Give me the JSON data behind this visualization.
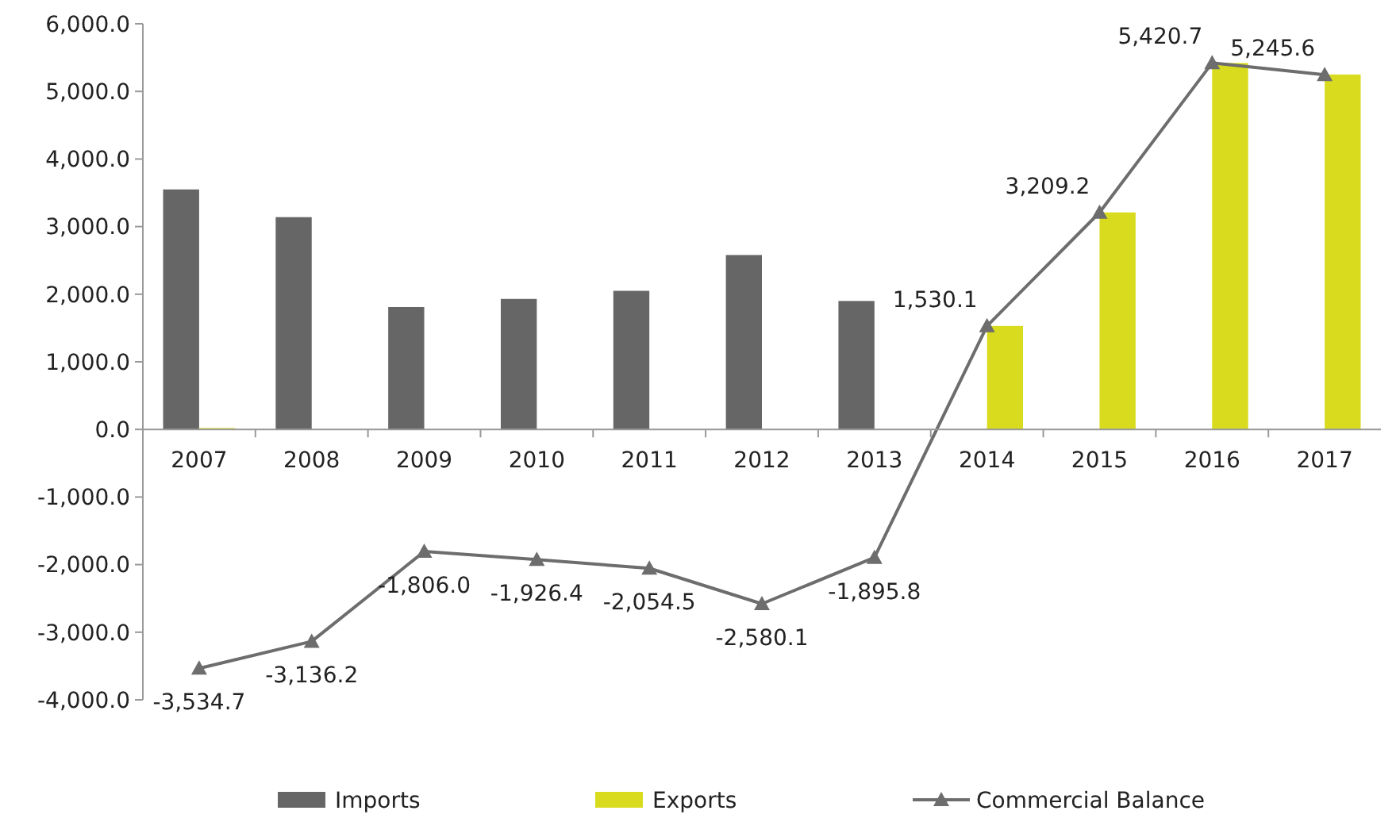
{
  "chart_data": {
    "type": "bar",
    "categories": [
      "2007",
      "2008",
      "2009",
      "2010",
      "2011",
      "2012",
      "2013",
      "2014",
      "2015",
      "2016",
      "2017"
    ],
    "series": [
      {
        "name": "Imports",
        "color": "#666666",
        "values": [
          3550,
          3140,
          1810,
          1930,
          2050,
          2580,
          1900,
          0,
          0,
          0,
          0
        ]
      },
      {
        "name": "Exports",
        "color": "#d9dc1e",
        "values": [
          20,
          0,
          0,
          0,
          0,
          0,
          0,
          1530,
          3210,
          5420,
          5250
        ]
      },
      {
        "name": "Commercial Balance",
        "type": "line",
        "color": "#6d6d6d",
        "marker": "triangle",
        "values": [
          -3534.7,
          -3136.2,
          -1806.0,
          -1926.4,
          -2054.5,
          -2580.1,
          -1895.8,
          1530.1,
          3209.2,
          5420.7,
          5245.6
        ],
        "value_labels": [
          "-3,534.7",
          "-3,136.2",
          "-1,806.0",
          "-1,926.4",
          "-2,054.5",
          "-2,580.1",
          "-1,895.8",
          "1,530.1",
          "3,209.2",
          "5,420.7",
          "5,245.6"
        ]
      }
    ],
    "ylim": [
      -4000,
      6000
    ],
    "yticks": [
      {
        "value": -4000,
        "label": "-4,000.0"
      },
      {
        "value": -3000,
        "label": "-3,000.0"
      },
      {
        "value": -2000,
        "label": "-2,000.0"
      },
      {
        "value": -1000,
        "label": "-1,000.0"
      },
      {
        "value": 0,
        "label": "0.0"
      },
      {
        "value": 1000,
        "label": "1,000.0"
      },
      {
        "value": 2000,
        "label": "2,000.0"
      },
      {
        "value": 3000,
        "label": "3,000.0"
      },
      {
        "value": 4000,
        "label": "4,000.0"
      },
      {
        "value": 5000,
        "label": "5,000.0"
      },
      {
        "value": 6000,
        "label": "6,000.0"
      }
    ],
    "grid": false,
    "legend": "bottom"
  }
}
